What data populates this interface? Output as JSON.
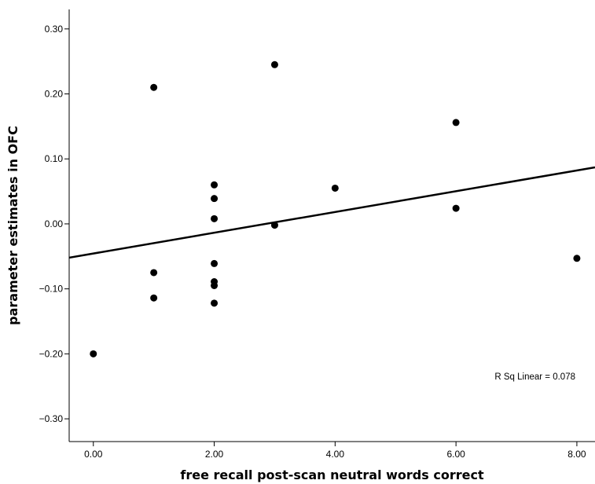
{
  "chart_data": {
    "type": "scatter",
    "title": "",
    "xlabel": "free recall post-scan neutral words correct",
    "ylabel": "parameter estimates in OFC",
    "xlim": [
      -0.4,
      8.3
    ],
    "ylim": [
      -0.335,
      0.33
    ],
    "xticks": [
      0,
      2,
      4,
      6,
      8
    ],
    "xtick_labels": [
      "0.00",
      "2.00",
      "4.00",
      "6.00",
      "8.00"
    ],
    "yticks": [
      0.3,
      0.2,
      0.1,
      0.0,
      -0.1,
      -0.2,
      -0.3
    ],
    "ytick_labels": [
      "0.30",
      "0.20",
      "0.10",
      "0.00",
      "-0.10",
      "-0.20",
      "-0.30"
    ],
    "grid": false,
    "series": [
      {
        "points": [
          {
            "x": 0,
            "y": -0.2
          },
          {
            "x": 1,
            "y": 0.21
          },
          {
            "x": 1,
            "y": -0.075
          },
          {
            "x": 1,
            "y": -0.114
          },
          {
            "x": 2,
            "y": 0.06
          },
          {
            "x": 2,
            "y": 0.039
          },
          {
            "x": 2,
            "y": 0.008
          },
          {
            "x": 2,
            "y": -0.061
          },
          {
            "x": 2,
            "y": -0.089
          },
          {
            "x": 2,
            "y": -0.095
          },
          {
            "x": 2,
            "y": -0.122
          },
          {
            "x": 3,
            "y": 0.245
          },
          {
            "x": 3,
            "y": -0.002
          },
          {
            "x": 4,
            "y": 0.055
          },
          {
            "x": 6,
            "y": 0.156
          },
          {
            "x": 6,
            "y": 0.024
          },
          {
            "x": 8,
            "y": -0.053
          }
        ]
      }
    ],
    "fit_line": {
      "type": "linear",
      "x": [
        -0.4,
        8.3
      ],
      "y": [
        -0.052,
        0.087
      ]
    },
    "annotations": [
      "R Sq Linear = 0.078"
    ]
  }
}
